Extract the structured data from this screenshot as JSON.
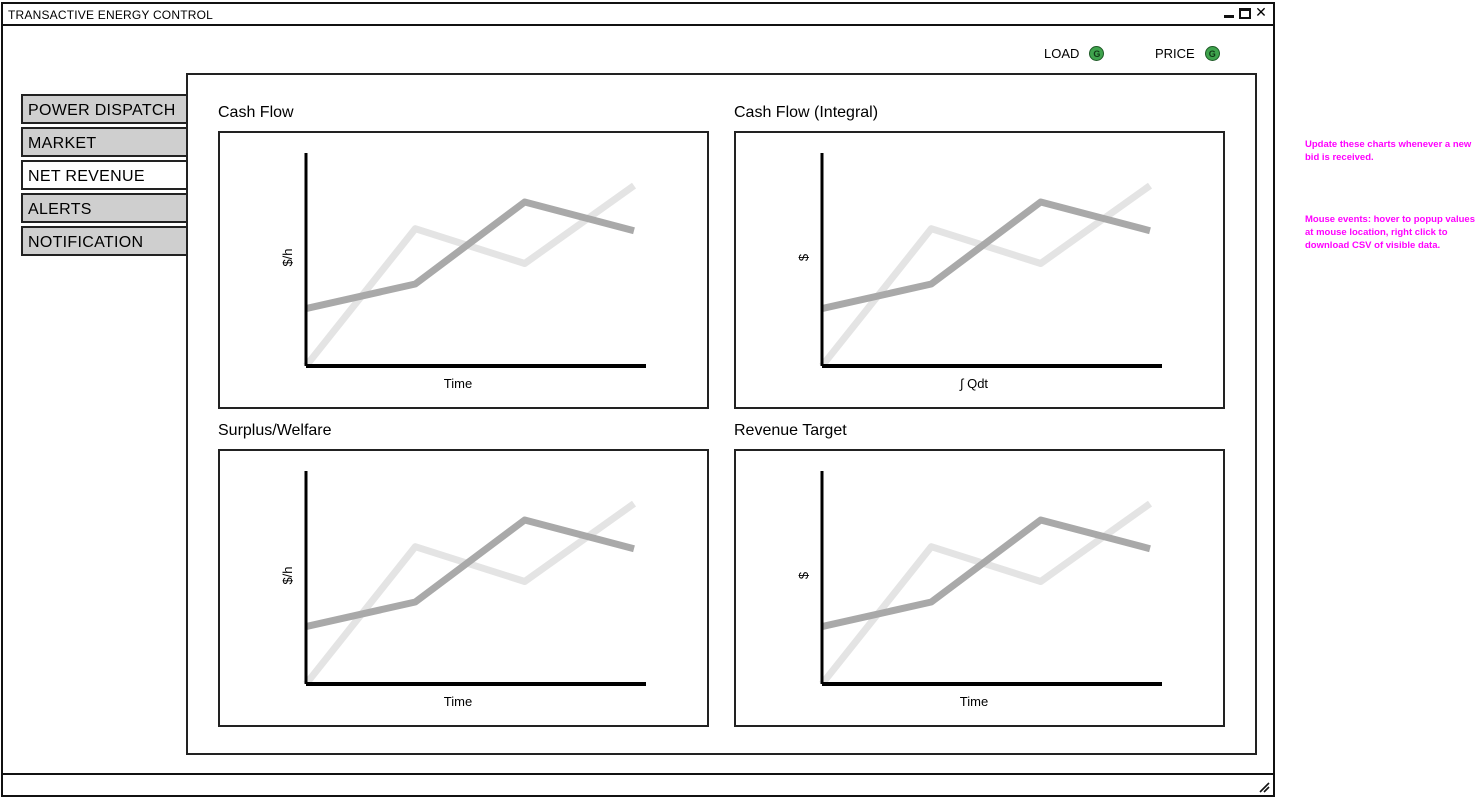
{
  "window": {
    "title": "TRANSACTIVE ENERGY CONTROL"
  },
  "indicators": [
    {
      "label": "LOAD",
      "badge": "G",
      "color": "#3fa34d"
    },
    {
      "label": "PRICE",
      "badge": "G",
      "color": "#3fa34d"
    }
  ],
  "tabs": [
    {
      "label": "POWER DISPATCH",
      "active": false
    },
    {
      "label": "MARKET",
      "active": false
    },
    {
      "label": "NET REVENUE",
      "active": true
    },
    {
      "label": "ALERTS",
      "active": false
    },
    {
      "label": "NOTIFICATION",
      "active": false
    }
  ],
  "chart_data": [
    {
      "type": "line",
      "title": "Cash Flow",
      "xlabel": "Time",
      "ylabel": "$/h",
      "series": [
        {
          "color": "#e4e4e4",
          "values": [
            0,
            0.67,
            0.5,
            0.88
          ]
        },
        {
          "color": "#a9a9a9",
          "values": [
            0.28,
            0.4,
            0.8,
            0.66
          ]
        }
      ]
    },
    {
      "type": "line",
      "title": "Cash Flow (Integral)",
      "xlabel": "∫ Qdt",
      "ylabel": "$",
      "series": [
        {
          "color": "#e4e4e4",
          "values": [
            0,
            0.67,
            0.5,
            0.88
          ]
        },
        {
          "color": "#a9a9a9",
          "values": [
            0.28,
            0.4,
            0.8,
            0.66
          ]
        }
      ]
    },
    {
      "type": "line",
      "title": "Surplus/Welfare",
      "xlabel": "Time",
      "ylabel": "$/h",
      "series": [
        {
          "color": "#e4e4e4",
          "values": [
            0,
            0.67,
            0.5,
            0.88
          ]
        },
        {
          "color": "#a9a9a9",
          "values": [
            0.28,
            0.4,
            0.8,
            0.66
          ]
        }
      ]
    },
    {
      "type": "line",
      "title": "Revenue Target",
      "xlabel": "Time",
      "ylabel": "$",
      "series": [
        {
          "color": "#e4e4e4",
          "values": [
            0,
            0.67,
            0.5,
            0.88
          ]
        },
        {
          "color": "#a9a9a9",
          "values": [
            0.28,
            0.4,
            0.8,
            0.66
          ]
        }
      ]
    }
  ],
  "annotations": [
    "Update these charts whenever a new bid is received.",
    "Mouse events: hover to popup values at mouse location, right click to download CSV of visible data."
  ]
}
